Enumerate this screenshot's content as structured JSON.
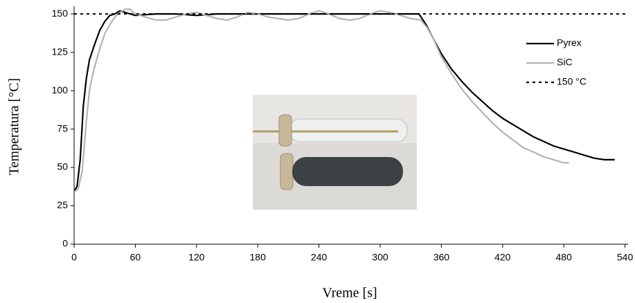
{
  "chart_data": {
    "type": "line",
    "x_label": "Vreme [s]",
    "y_label": "Temperatura [°C]",
    "xlim": [
      0,
      543
    ],
    "xticks": [
      0,
      60,
      120,
      180,
      240,
      300,
      360,
      420,
      480,
      540
    ],
    "ylim": [
      0,
      155
    ],
    "yticks": [
      0,
      25,
      50,
      75,
      100,
      125,
      150
    ],
    "grid": false,
    "legend": "upper right",
    "series": [
      {
        "name": "Pyrex",
        "color": "#000000",
        "dash": false,
        "x": [
          0,
          3,
          6,
          9,
          12,
          15,
          20,
          25,
          30,
          35,
          40,
          45,
          50,
          60,
          80,
          100,
          120,
          140,
          160,
          180,
          200,
          220,
          240,
          260,
          280,
          300,
          320,
          338,
          345,
          352,
          360,
          370,
          380,
          390,
          400,
          410,
          420,
          430,
          440,
          450,
          460,
          470,
          480,
          490,
          500,
          510,
          520,
          530
        ],
        "values": [
          34,
          38,
          55,
          90,
          108,
          120,
          130,
          139,
          145,
          149,
          150,
          152,
          151,
          149,
          150,
          150,
          149,
          150,
          150,
          150,
          150,
          150,
          150,
          150,
          150,
          150,
          150,
          150,
          143,
          134,
          124,
          114,
          106,
          99,
          93,
          87,
          82,
          78,
          74,
          70,
          67,
          64,
          62,
          60,
          58,
          56,
          55,
          55
        ]
      },
      {
        "name": "SiC",
        "color": "#b3b3b3",
        "dash": false,
        "x": [
          0,
          4,
          8,
          12,
          15,
          18,
          22,
          26,
          30,
          35,
          40,
          45,
          50,
          55,
          60,
          70,
          80,
          90,
          100,
          110,
          120,
          130,
          140,
          150,
          160,
          170,
          180,
          190,
          200,
          210,
          220,
          230,
          240,
          250,
          260,
          270,
          280,
          290,
          300,
          310,
          320,
          330,
          340,
          346,
          352,
          360,
          370,
          380,
          390,
          400,
          410,
          420,
          430,
          440,
          450,
          460,
          470,
          480,
          485
        ],
        "values": [
          34,
          36,
          48,
          80,
          100,
          110,
          120,
          129,
          137,
          143,
          148,
          151,
          153,
          153,
          150,
          148,
          146,
          146,
          148,
          150,
          151,
          149,
          147,
          146,
          148,
          151,
          150,
          148,
          147,
          146,
          147,
          150,
          152,
          150,
          147,
          146,
          147,
          150,
          152,
          151,
          149,
          147,
          146,
          141,
          134,
          122,
          111,
          101,
          93,
          86,
          79,
          73,
          68,
          63,
          60,
          57,
          55,
          53,
          53
        ]
      },
      {
        "name": "150 °C",
        "color": "#000000",
        "dash": true,
        "x": [
          0,
          543
        ],
        "values": [
          150,
          150
        ]
      }
    ]
  }
}
